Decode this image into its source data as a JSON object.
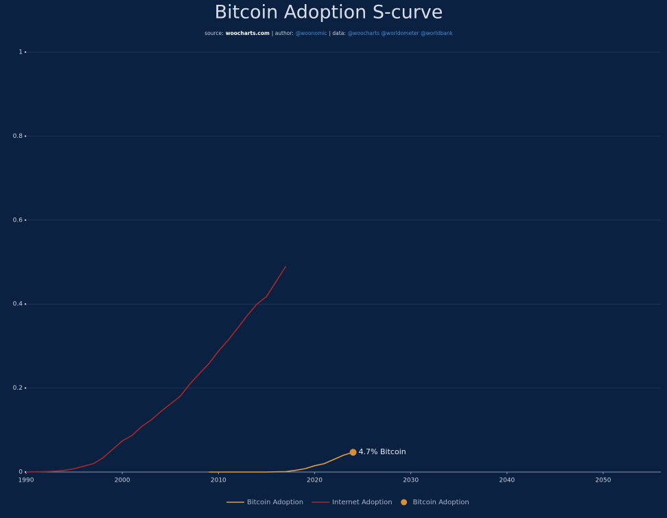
{
  "chart_data": {
    "type": "line",
    "title": "Bitcoin Adoption S-curve",
    "subtitle_parts": [
      {
        "text": "source:",
        "color": "#c9d1dc"
      },
      {
        "text": "woocharts.com",
        "color": "#ffffff",
        "bold": true
      },
      {
        "text": "| author:",
        "color": "#c9d1dc"
      },
      {
        "text": "@woonomic",
        "color": "#3d8fd6"
      },
      {
        "text": "| data:",
        "color": "#c9d1dc"
      },
      {
        "text": "@woocharts @worldometer @worldbank",
        "color": "#3d8fd6"
      }
    ],
    "xlim": [
      1990,
      2056
    ],
    "xticks": [
      1990,
      2000,
      2010,
      2020,
      2030,
      2040,
      2050
    ],
    "ylim": [
      0,
      1
    ],
    "yticks": [
      0,
      0.2,
      0.4,
      0.6,
      0.8,
      1
    ],
    "grid": true,
    "series": [
      {
        "name": "Bitcoin Adoption",
        "color": "#e0a040",
        "mode": "line",
        "x": [
          2009,
          2010,
          2011,
          2012,
          2013,
          2014,
          2015,
          2016,
          2017,
          2018,
          2019,
          2020,
          2021,
          2022,
          2023,
          2024
        ],
        "values": [
          0,
          0,
          0,
          0,
          0,
          0,
          0,
          0.0005,
          0.001,
          0.004,
          0.008,
          0.015,
          0.02,
          0.03,
          0.04,
          0.047
        ]
      },
      {
        "name": "Internet Adoption",
        "color": "#a8282a",
        "mode": "line",
        "x": [
          1990,
          1991,
          1992,
          1993,
          1994,
          1995,
          1996,
          1997,
          1998,
          1999,
          2000,
          2001,
          2002,
          2003,
          2004,
          2005,
          2006,
          2007,
          2008,
          2009,
          2010,
          2011,
          2012,
          2013,
          2014,
          2015,
          2016,
          2017
        ],
        "values": [
          0,
          0.0005,
          0.001,
          0.002,
          0.004,
          0.008,
          0.014,
          0.02,
          0.034,
          0.054,
          0.074,
          0.087,
          0.108,
          0.124,
          0.144,
          0.162,
          0.18,
          0.209,
          0.234,
          0.258,
          0.288,
          0.314,
          0.343,
          0.373,
          0.4,
          0.418,
          0.454,
          0.49
        ]
      },
      {
        "name": "Bitcoin Adoption",
        "color": "#d4913a",
        "mode": "marker",
        "x": [
          2024
        ],
        "values": [
          0.047
        ],
        "value_labels": [
          "4.7% Bitcoin"
        ]
      }
    ]
  }
}
